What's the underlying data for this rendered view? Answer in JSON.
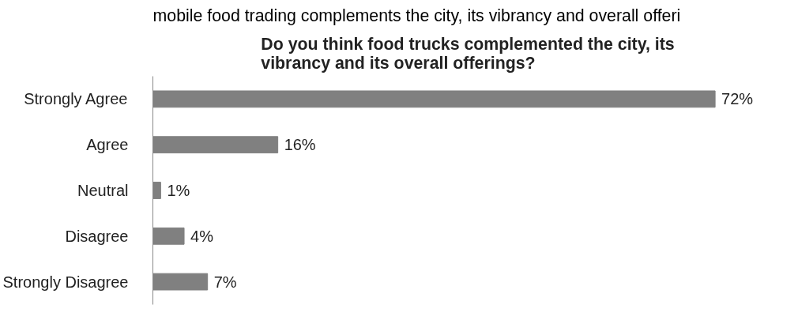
{
  "chart_data": {
    "type": "bar",
    "orientation": "horizontal",
    "title": "Do you think food trucks complemented the city, its\nvibrancy and its overall offerings?",
    "annotations": [
      "mobile food trading complements the city, its vibrancy and overall offeri"
    ],
    "categories": [
      "Strongly Agree",
      "Agree",
      "Neutral",
      "Disagree",
      "Strongly Disagree"
    ],
    "values": [
      72,
      16,
      1,
      4,
      7
    ],
    "value_labels": [
      "72%",
      "16%",
      "1%",
      "4%",
      "7%"
    ],
    "color": "#808080",
    "grid": false,
    "tick_labels": "y"
  }
}
